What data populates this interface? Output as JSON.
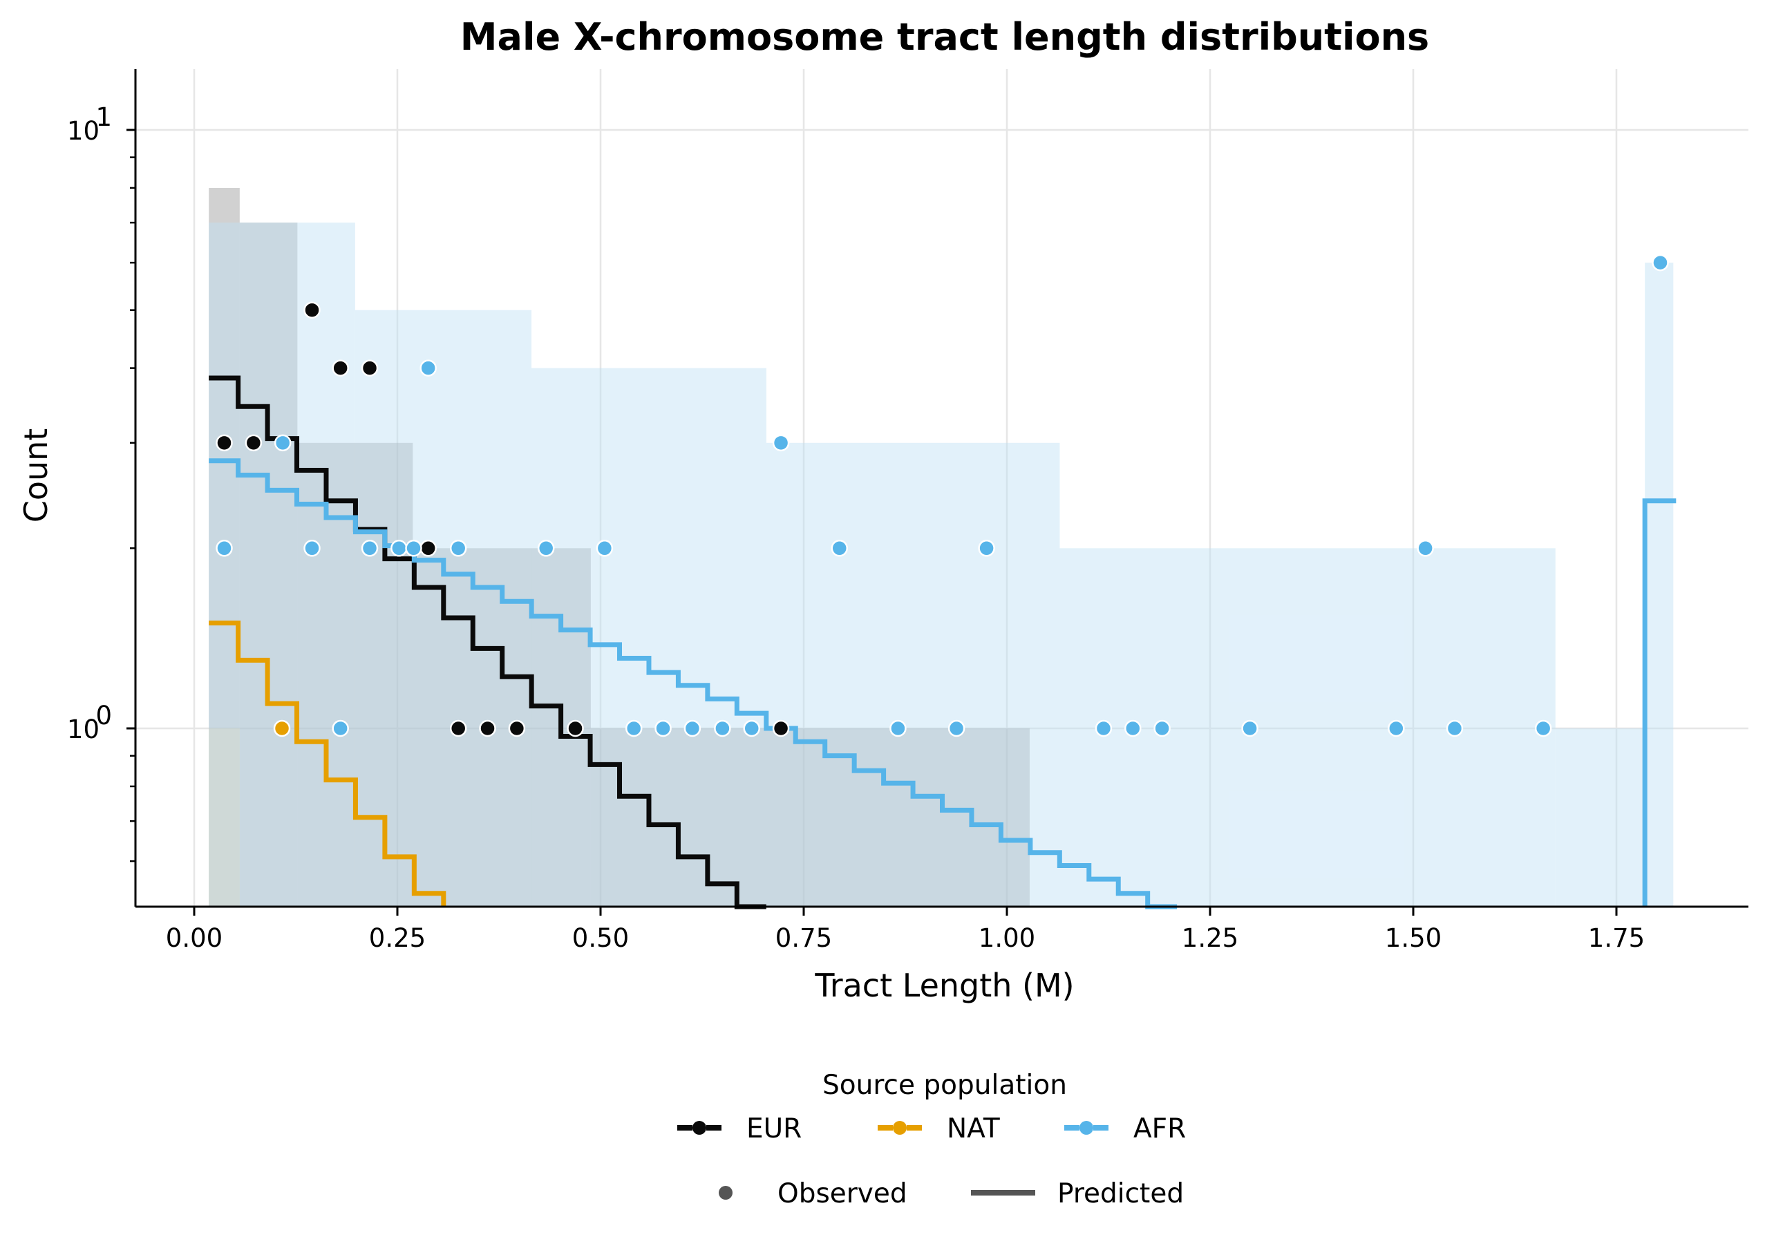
{
  "chart_data": {
    "type": "histogram-step-scatter",
    "title": "Male X-chromosome tract length distributions",
    "xlabel": "Tract Length (M)",
    "ylabel": "Count",
    "xscale": "linear",
    "yscale": "log",
    "xlim": [
      -0.07,
      1.91
    ],
    "ylim": [
      0.5,
      12
    ],
    "xticks": [
      0.0,
      0.25,
      0.5,
      0.75,
      1.0,
      1.25,
      1.5,
      1.75
    ],
    "xtick_labels": [
      "0.00",
      "0.25",
      "0.50",
      "0.75",
      "1.00",
      "1.25",
      "1.50",
      "1.75"
    ],
    "yticks": [
      1,
      10
    ],
    "ytick_labels": [
      {
        "base": "10",
        "exp": "0"
      },
      {
        "base": "10",
        "exp": "1"
      }
    ],
    "grid": true,
    "legend": {
      "title": "Source population",
      "placement": "bottom-center",
      "entries": [
        {
          "label": "EUR",
          "color": "#0a0a0a"
        },
        {
          "label": "NAT",
          "color": "#e69f00"
        },
        {
          "label": "AFR",
          "color": "#56b4e9"
        }
      ],
      "style_entries": [
        {
          "label": "Observed",
          "kind": "marker",
          "color": "#555555"
        },
        {
          "label": "Predicted",
          "kind": "line",
          "color": "#555555"
        }
      ]
    },
    "series": [
      {
        "name": "EUR",
        "color": "#0a0a0a",
        "hist_color": "#9a9a9a",
        "histogram": [
          {
            "x0": 0.018,
            "x1": 0.056,
            "count": 8
          },
          {
            "x0": 0.056,
            "x1": 0.127,
            "count": 7
          },
          {
            "x0": 0.127,
            "x1": 0.198,
            "count": 3
          },
          {
            "x0": 0.198,
            "x1": 0.269,
            "count": 3
          },
          {
            "x0": 0.269,
            "x1": 0.488,
            "count": 2
          },
          {
            "x0": 0.488,
            "x1": 1.028,
            "count": 1
          }
        ],
        "observed": [
          {
            "x": 0.037,
            "y": 3
          },
          {
            "x": 0.073,
            "y": 3
          },
          {
            "x": 0.145,
            "y": 5
          },
          {
            "x": 0.18,
            "y": 4
          },
          {
            "x": 0.216,
            "y": 4
          },
          {
            "x": 0.288,
            "y": 2
          },
          {
            "x": 0.325,
            "y": 1
          },
          {
            "x": 0.361,
            "y": 1
          },
          {
            "x": 0.397,
            "y": 1
          },
          {
            "x": 0.469,
            "y": 1
          },
          {
            "x": 0.722,
            "y": 1
          }
        ],
        "predicted": {
          "start": 0.018,
          "step": 0.0361,
          "values": [
            3.85,
            3.45,
            3.05,
            2.7,
            2.4,
            2.15,
            1.92,
            1.72,
            1.53,
            1.36,
            1.22,
            1.09,
            0.97,
            0.87,
            0.77,
            0.69,
            0.61,
            0.55,
            0.49
          ]
        }
      },
      {
        "name": "NAT",
        "color": "#e69f00",
        "hist_color": "#e8d8a8",
        "histogram": [
          {
            "x0": 0.018,
            "x1": 0.056,
            "count": 1
          }
        ],
        "observed": [
          {
            "x": 0.108,
            "y": 1
          }
        ],
        "predicted": {
          "start": 0.018,
          "step": 0.0361,
          "values": [
            1.5,
            1.3,
            1.1,
            0.95,
            0.82,
            0.71,
            0.61,
            0.53
          ]
        }
      },
      {
        "name": "AFR",
        "color": "#56b4e9",
        "hist_color": "#bfe0f5",
        "histogram": [
          {
            "x0": 0.018,
            "x1": 0.198,
            "count": 7
          },
          {
            "x0": 0.198,
            "x1": 0.307,
            "count": 5
          },
          {
            "x0": 0.307,
            "x1": 0.415,
            "count": 5
          },
          {
            "x0": 0.415,
            "x1": 0.704,
            "count": 4
          },
          {
            "x0": 0.704,
            "x1": 1.065,
            "count": 3
          },
          {
            "x0": 1.065,
            "x1": 1.675,
            "count": 2
          },
          {
            "x0": 1.675,
            "x1": 1.785,
            "count": 1
          },
          {
            "x0": 1.785,
            "x1": 1.82,
            "count": 6
          }
        ],
        "observed": [
          {
            "x": 0.037,
            "y": 2
          },
          {
            "x": 0.109,
            "y": 3
          },
          {
            "x": 0.145,
            "y": 2
          },
          {
            "x": 0.18,
            "y": 1
          },
          {
            "x": 0.216,
            "y": 2
          },
          {
            "x": 0.252,
            "y": 2
          },
          {
            "x": 0.27,
            "y": 2
          },
          {
            "x": 0.288,
            "y": 4
          },
          {
            "x": 0.325,
            "y": 2
          },
          {
            "x": 0.433,
            "y": 2
          },
          {
            "x": 0.505,
            "y": 2
          },
          {
            "x": 0.541,
            "y": 1
          },
          {
            "x": 0.577,
            "y": 1
          },
          {
            "x": 0.613,
            "y": 1
          },
          {
            "x": 0.65,
            "y": 1
          },
          {
            "x": 0.686,
            "y": 1
          },
          {
            "x": 0.722,
            "y": 3
          },
          {
            "x": 0.794,
            "y": 2
          },
          {
            "x": 0.866,
            "y": 1
          },
          {
            "x": 0.938,
            "y": 1
          },
          {
            "x": 0.975,
            "y": 2
          },
          {
            "x": 1.119,
            "y": 1
          },
          {
            "x": 1.155,
            "y": 1
          },
          {
            "x": 1.191,
            "y": 1
          },
          {
            "x": 1.299,
            "y": 1
          },
          {
            "x": 1.479,
            "y": 1
          },
          {
            "x": 1.515,
            "y": 2
          },
          {
            "x": 1.551,
            "y": 1
          },
          {
            "x": 1.66,
            "y": 1
          },
          {
            "x": 1.804,
            "y": 6
          }
        ],
        "predicted": {
          "start": 0.018,
          "step": 0.0361,
          "values": [
            2.8,
            2.65,
            2.5,
            2.37,
            2.25,
            2.13,
            2.02,
            1.91,
            1.81,
            1.72,
            1.63,
            1.54,
            1.46,
            1.38,
            1.31,
            1.24,
            1.18,
            1.12,
            1.06,
            1.0,
            0.95,
            0.9,
            0.85,
            0.81,
            0.77,
            0.73,
            0.69,
            0.65,
            0.62,
            0.59,
            0.56,
            0.53,
            0.5
          ]
        },
        "predicted_tail": {
          "x0": 1.785,
          "x1": 1.82,
          "value": 2.4
        }
      }
    ],
    "overlap_bins_note_color": "#bac9d2"
  }
}
